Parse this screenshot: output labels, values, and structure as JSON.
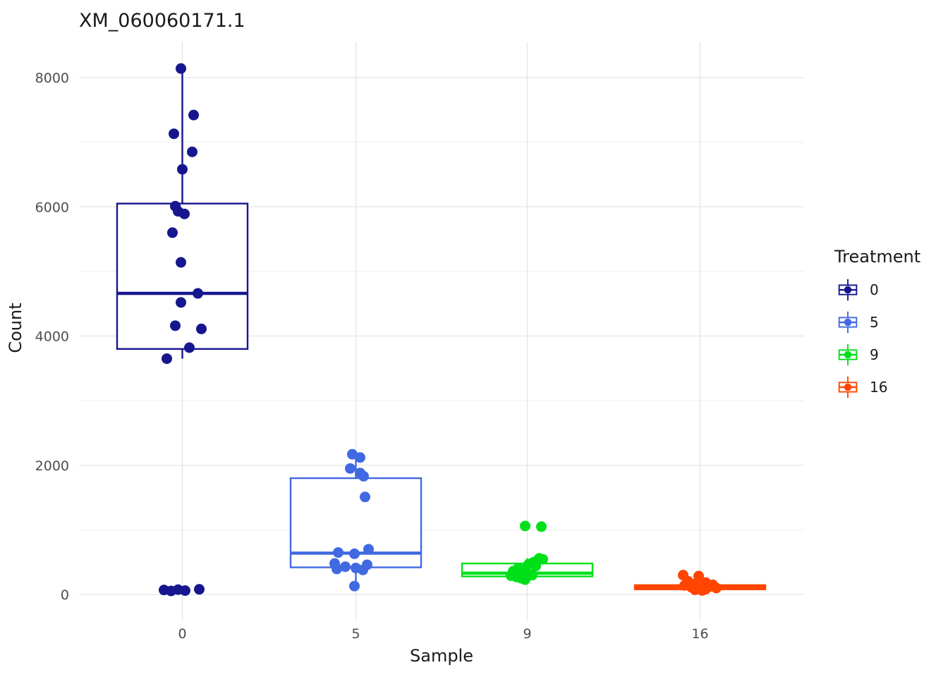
{
  "title": "XM_060060171.1",
  "legend": {
    "title": "Treatment"
  },
  "chart_data": {
    "type": "boxplot",
    "title": "XM_060060171.1",
    "xlabel": "Sample",
    "ylabel": "Count",
    "ylim": [
      -400,
      8550
    ],
    "yticks": [
      0,
      2000,
      4000,
      6000,
      8000
    ],
    "yticks_minor": [
      1000,
      3000,
      5000,
      7000
    ],
    "categories": [
      "0",
      "5",
      "9",
      "16"
    ],
    "legend_title": "Treatment",
    "legend_position": "right",
    "grid": "major+minor",
    "style": {
      "panel_background": "#ffffff",
      "grid_major_color": "#e4e4e4",
      "grid_minor_color": "#f2f2f2",
      "tick_label_color": "#4d4d4d",
      "text_color": "#1a1a1a",
      "box_fill": "#ffffff"
    },
    "groups": [
      {
        "sample": "0",
        "color": "#16168f",
        "box": {
          "whisker_low": 3650,
          "q1": 3800,
          "median": 4660,
          "q3": 6050,
          "whisker_high": 8150
        },
        "points": [
          [
            -2,
            8140
          ],
          [
            16,
            7420
          ],
          [
            -12,
            7130
          ],
          [
            14,
            6850
          ],
          [
            0,
            6580
          ],
          [
            -10,
            6010
          ],
          [
            -6,
            5930
          ],
          [
            3,
            5890
          ],
          [
            -14,
            5600
          ],
          [
            -2,
            5140
          ],
          [
            22,
            4660
          ],
          [
            -2,
            4520
          ],
          [
            -10,
            4160
          ],
          [
            27,
            4110
          ],
          [
            10,
            3820
          ],
          [
            -22,
            3650
          ],
          [
            -26,
            70
          ],
          [
            -16,
            55
          ],
          [
            -6,
            75
          ],
          [
            4,
            60
          ],
          [
            24,
            80
          ]
        ]
      },
      {
        "sample": "5",
        "color": "#4169e1",
        "box": {
          "whisker_low": 130,
          "q1": 420,
          "median": 640,
          "q3": 1800,
          "whisker_high": 2170
        },
        "points": [
          [
            -5,
            2170
          ],
          [
            6,
            2120
          ],
          [
            -8,
            1950
          ],
          [
            6,
            1880
          ],
          [
            11,
            1830
          ],
          [
            13,
            1510
          ],
          [
            18,
            700
          ],
          [
            -25,
            650
          ],
          [
            -2,
            630
          ],
          [
            -30,
            480
          ],
          [
            16,
            460
          ],
          [
            -15,
            430
          ],
          [
            0,
            410
          ],
          [
            -27,
            395
          ],
          [
            10,
            380
          ],
          [
            -2,
            130
          ]
        ]
      },
      {
        "sample": "9",
        "color": "#00e01a",
        "box": {
          "whisker_low": 200,
          "q1": 280,
          "median": 330,
          "q3": 480,
          "whisker_high": 560
        },
        "points": [
          [
            -3,
            1060
          ],
          [
            20,
            1050
          ],
          [
            17,
            560
          ],
          [
            22,
            545
          ],
          [
            14,
            520
          ],
          [
            9,
            500
          ],
          [
            2,
            470
          ],
          [
            12,
            440
          ],
          [
            -13,
            405
          ],
          [
            -6,
            385
          ],
          [
            -20,
            360
          ],
          [
            -11,
            340
          ],
          [
            0,
            330
          ],
          [
            -18,
            310
          ],
          [
            7,
            300
          ],
          [
            -23,
            290
          ],
          [
            -15,
            270
          ],
          [
            -8,
            250
          ],
          [
            -3,
            230
          ]
        ]
      },
      {
        "sample": "16",
        "color": "#ff4500",
        "box": {
          "whisker_low": 45,
          "q1": 80,
          "median": 110,
          "q3": 145,
          "whisker_high": 185
        },
        "points": [
          [
            -24,
            300
          ],
          [
            -2,
            285
          ],
          [
            -17,
            205
          ],
          [
            8,
            185
          ],
          [
            -7,
            165
          ],
          [
            18,
            150
          ],
          [
            -22,
            140
          ],
          [
            3,
            130
          ],
          [
            13,
            120
          ],
          [
            -12,
            110
          ],
          [
            23,
            100
          ],
          [
            -2,
            92
          ],
          [
            8,
            82
          ],
          [
            -7,
            72
          ],
          [
            3,
            62
          ]
        ]
      }
    ]
  }
}
